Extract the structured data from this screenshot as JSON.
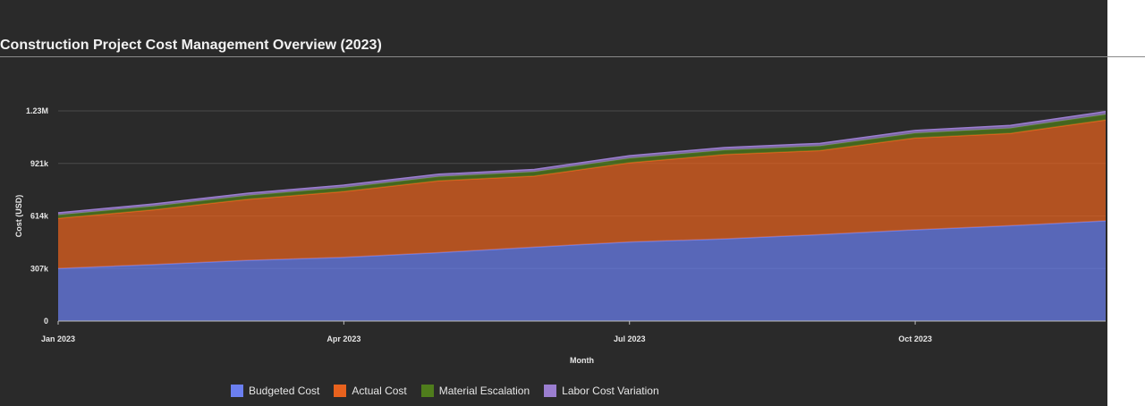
{
  "chart_data": {
    "type": "area",
    "stacked": true,
    "title": "Construction Project Cost Management Overview (2023)",
    "xlabel": "Month",
    "ylabel": "Cost (USD)",
    "x": [
      "2023-01",
      "2023-02",
      "2023-03",
      "2023-04",
      "2023-05",
      "2023-06",
      "2023-07",
      "2023-08",
      "2023-09",
      "2023-10",
      "2023-11",
      "2023-12"
    ],
    "x_ticks": [
      "Jan 2023",
      "Apr 2023",
      "Jul 2023",
      "Oct 2023"
    ],
    "y_ticks": [
      0,
      307000,
      614000,
      921000,
      1228000
    ],
    "y_tick_labels": [
      "0",
      "307k",
      "614k",
      "921k",
      "1.23M"
    ],
    "ylim": [
      0,
      1228000
    ],
    "grid": true,
    "legend_position": "bottom",
    "series": [
      {
        "name": "Budgeted Cost",
        "color": "#6b7ff0",
        "values": [
          307000,
          330000,
          355000,
          372000,
          400000,
          432000,
          462000,
          480000,
          505000,
          533000,
          557000,
          585000
        ]
      },
      {
        "name": "Actual Cost",
        "color": "#e8621e",
        "values": [
          293000,
          320000,
          357000,
          385000,
          420000,
          415000,
          463000,
          493000,
          491000,
          537000,
          540000,
          590000
        ]
      },
      {
        "name": "Material Escalation",
        "color": "#4f7d1c",
        "values": [
          20000,
          21000,
          22000,
          23000,
          24000,
          25000,
          26000,
          26000,
          27000,
          28000,
          30000,
          32000
        ]
      },
      {
        "name": "Labor Cost Variation",
        "color": "#9b7ed0",
        "values": [
          12000,
          13000,
          13000,
          14000,
          14000,
          14000,
          15000,
          15000,
          15000,
          16000,
          16000,
          17000
        ]
      }
    ]
  }
}
